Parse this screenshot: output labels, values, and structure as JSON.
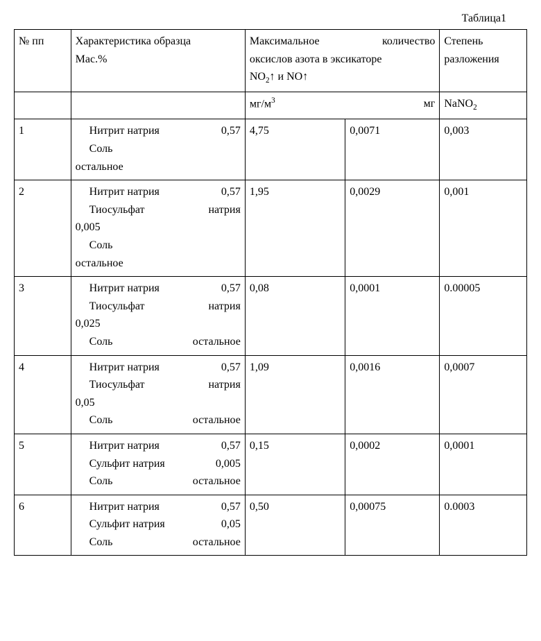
{
  "caption": "Таблица1",
  "headers": {
    "num": "№ пп",
    "char_l1": "Характеристика образца",
    "char_l2": "Мас.%",
    "oxides_l1_left": "Максимальное",
    "oxides_l1_right": "количество",
    "oxides_l2": "оксиcлов азота в эксикаторе",
    "oxides_l3": "NO₂↑ и NO↑",
    "degree_l1": "Степень",
    "degree_l2": "разложения",
    "unit_left": "мг/м³",
    "unit_right": "мг",
    "degree_unit": "NaNO₂"
  },
  "labels": {
    "nitrit": "Нитрит натрия",
    "thio": "Тиосульфат",
    "natriya": "натрия",
    "sulfit": "Сульфит натрия",
    "salt": "Соль",
    "rest": "остальное"
  },
  "rows": [
    {
      "n": "1",
      "nitrit": "0,57",
      "thio": null,
      "sulfit": null,
      "salt_inline": false,
      "mgm3": "4,75",
      "mg": "0,0071",
      "deg": "0,003"
    },
    {
      "n": "2",
      "nitrit": "0,57",
      "thio": "0,005",
      "sulfit": null,
      "salt_inline": false,
      "mgm3": "1,95",
      "mg": "0,0029",
      "deg": "0,001"
    },
    {
      "n": "3",
      "nitrit": "0,57",
      "thio": "0,025",
      "sulfit": null,
      "salt_inline": true,
      "mgm3": "0,08",
      "mg": "0,0001",
      "deg": "0.00005"
    },
    {
      "n": "4",
      "nitrit": "0,57",
      "thio": "0,05",
      "sulfit": null,
      "salt_inline": true,
      "mgm3": "1,09",
      "mg": "0,0016",
      "deg": "0,0007"
    },
    {
      "n": "5",
      "nitrit": "0,57",
      "thio": null,
      "sulfit": "0,005",
      "salt_inline": true,
      "mgm3": "0,15",
      "mg": "0,0002",
      "deg": "0,0001"
    },
    {
      "n": "6",
      "nitrit": "0,57",
      "thio": null,
      "sulfit": "0,05",
      "salt_inline": true,
      "mgm3": "0,50",
      "mg": "0,00075",
      "deg": "0.0003"
    }
  ]
}
